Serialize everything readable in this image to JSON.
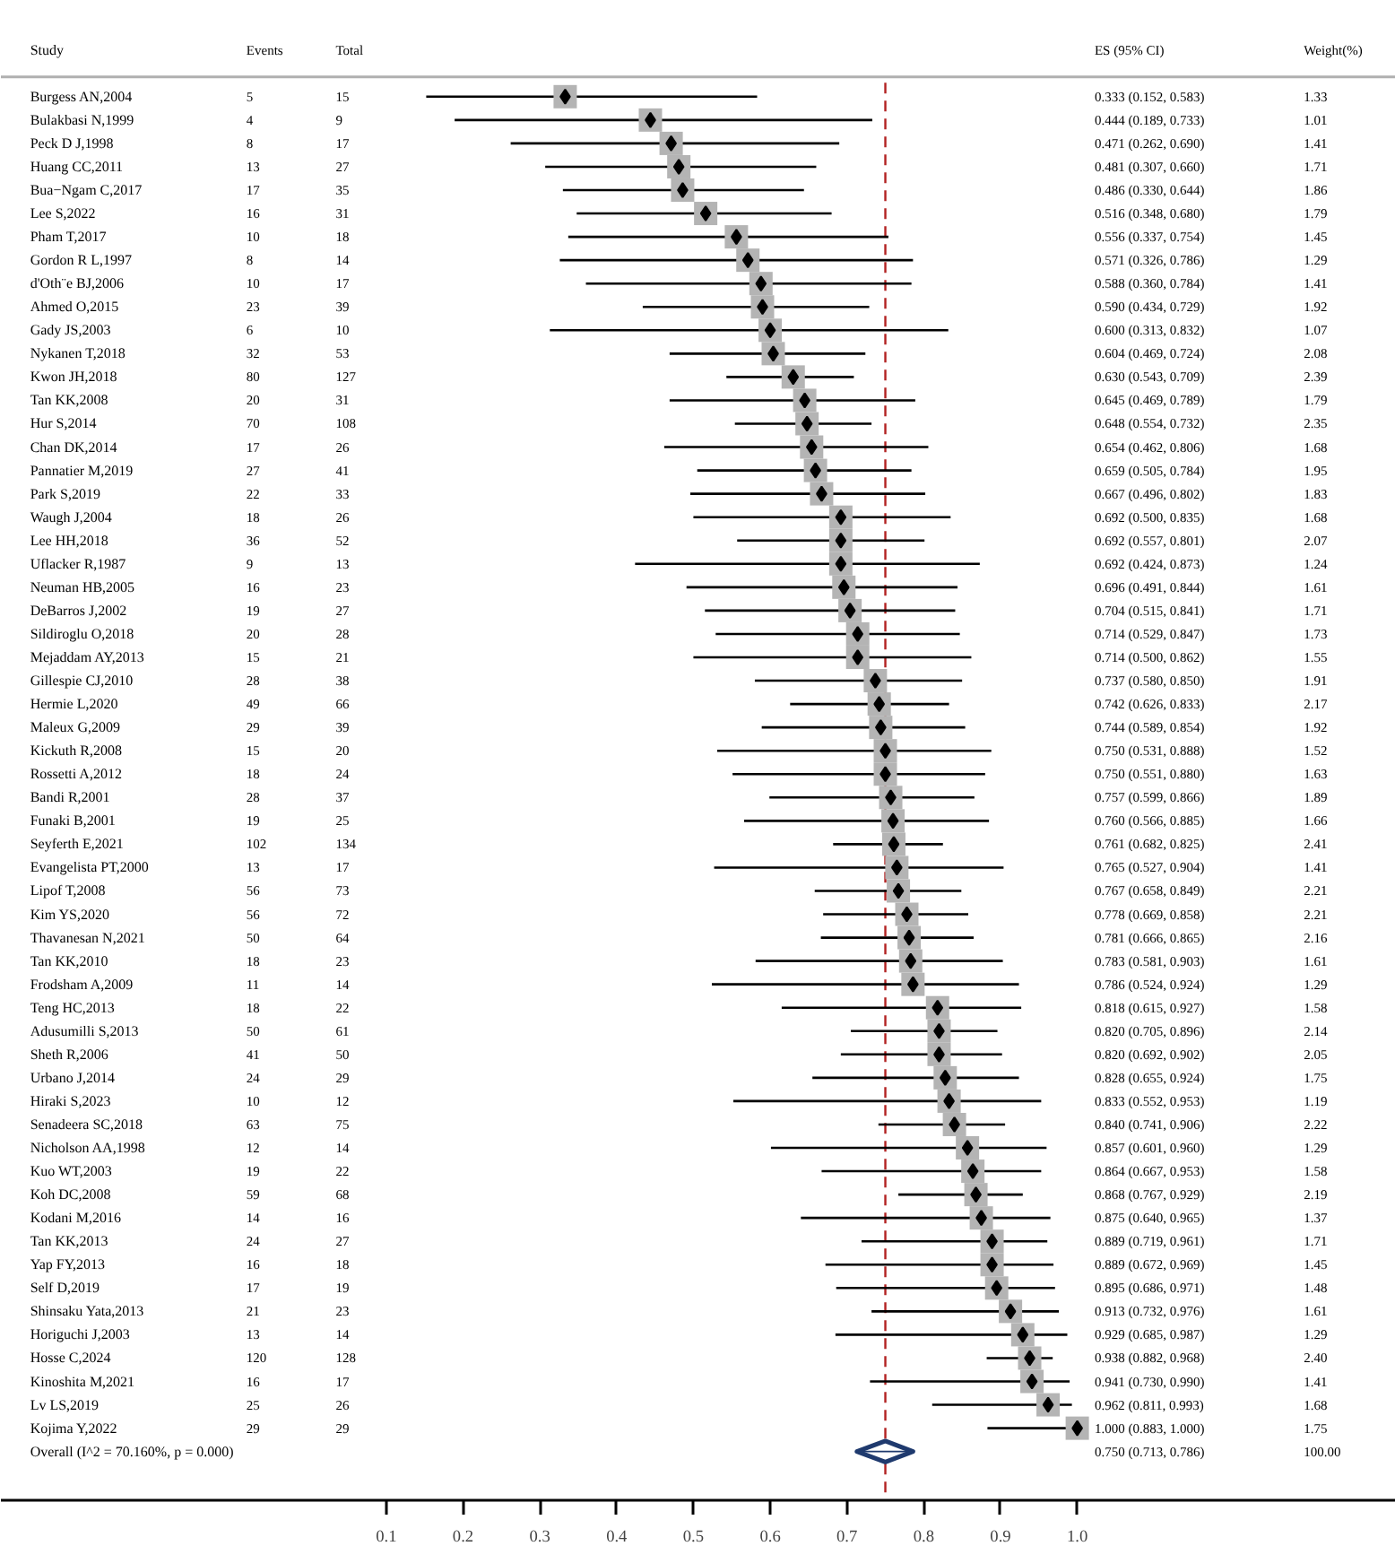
{
  "chart_data": {
    "type": "scatter",
    "orientation": "horizontal",
    "ylabel": "Study",
    "categories": [
      "Burgess AN,2004",
      "Bulakbasi N,1999",
      "Peck D J,1998",
      "Huang CC,2011",
      "Bua−Ngam C,2017",
      "Lee S,2022",
      "Pham T,2017",
      "Gordon R L,1997",
      "d'Oth¨e BJ,2006",
      "Ahmed O,2015",
      "Gady JS,2003",
      "Nykanen T,2018",
      "Kwon JH,2018",
      "Tan KK,2008",
      "Hur S,2014",
      "Chan DK,2014",
      "Pannatier M,2019",
      "Park S,2019",
      "Waugh J,2004",
      "Lee HH,2018",
      "Uflacker R,1987",
      "Neuman HB,2005",
      "DeBarros J,2002",
      "Sildiroglu O,2018",
      "Mejaddam AY,2013",
      "Gillespie CJ,2010",
      "Hermie L,2020",
      "Maleux G,2009",
      "Kickuth R,2008",
      "Rossetti A,2012",
      "Bandi R,2001",
      "Funaki B,2001",
      "Seyferth E,2021",
      "Evangelista PT,2000",
      "Lipof T,2008",
      "Kim YS,2020",
      "Thavanesan N,2021",
      "Tan KK,2010",
      "Frodsham A,2009",
      "Teng HC,2013",
      "Adusumilli S,2013",
      "Sheth R,2006",
      "Urbano J,2014",
      "Hiraki S,2023",
      "Senadeera SC,2018",
      "Nicholson AA,1998",
      "Kuo WT,2003",
      "Koh DC,2008",
      "Kodani M,2016",
      "Tan KK,2013",
      "Yap FY,2013",
      "Self D,2019",
      "Shinsaku Yata,2013",
      "Horiguchi J,2003",
      "Hosse C,2024",
      "Kinoshita M,2021",
      "Lv LS,2019",
      "Kojima Y,2022",
      "Overall  (I^2 = 70.160%, p = 0.000)"
    ],
    "series": [
      {
        "name": "ES (95% CI)",
        "color": "#000000",
        "marker": "diamond",
        "values": [
          0.333,
          0.444,
          0.471,
          0.481,
          0.486,
          0.516,
          0.556,
          0.571,
          0.588,
          0.59,
          0.6,
          0.604,
          0.63,
          0.645,
          0.648,
          0.654,
          0.659,
          0.667,
          0.692,
          0.692,
          0.692,
          0.696,
          0.704,
          0.714,
          0.714,
          0.737,
          0.742,
          0.744,
          0.75,
          0.75,
          0.757,
          0.76,
          0.761,
          0.765,
          0.767,
          0.778,
          0.781,
          0.783,
          0.786,
          0.818,
          0.82,
          0.82,
          0.828,
          0.833,
          0.84,
          0.857,
          0.864,
          0.868,
          0.875,
          0.889,
          0.889,
          0.895,
          0.913,
          0.929,
          0.938,
          0.941,
          0.962,
          1.0,
          null
        ],
        "errors": [
          [
            0.152,
            0.583
          ],
          [
            0.189,
            0.733
          ],
          [
            0.262,
            0.69
          ],
          [
            0.307,
            0.66
          ],
          [
            0.33,
            0.644
          ],
          [
            0.348,
            0.68
          ],
          [
            0.337,
            0.754
          ],
          [
            0.326,
            0.786
          ],
          [
            0.36,
            0.784
          ],
          [
            0.434,
            0.729
          ],
          [
            0.313,
            0.832
          ],
          [
            0.469,
            0.724
          ],
          [
            0.543,
            0.709
          ],
          [
            0.469,
            0.789
          ],
          [
            0.554,
            0.732
          ],
          [
            0.462,
            0.806
          ],
          [
            0.505,
            0.784
          ],
          [
            0.496,
            0.802
          ],
          [
            0.5,
            0.835
          ],
          [
            0.557,
            0.801
          ],
          [
            0.424,
            0.873
          ],
          [
            0.491,
            0.844
          ],
          [
            0.515,
            0.841
          ],
          [
            0.529,
            0.847
          ],
          [
            0.5,
            0.862
          ],
          [
            0.58,
            0.85
          ],
          [
            0.626,
            0.833
          ],
          [
            0.589,
            0.854
          ],
          [
            0.531,
            0.888
          ],
          [
            0.551,
            0.88
          ],
          [
            0.599,
            0.866
          ],
          [
            0.566,
            0.885
          ],
          [
            0.682,
            0.825
          ],
          [
            0.527,
            0.904
          ],
          [
            0.658,
            0.849
          ],
          [
            0.669,
            0.858
          ],
          [
            0.666,
            0.865
          ],
          [
            0.581,
            0.903
          ],
          [
            0.524,
            0.924
          ],
          [
            0.615,
            0.927
          ],
          [
            0.705,
            0.896
          ],
          [
            0.692,
            0.902
          ],
          [
            0.655,
            0.924
          ],
          [
            0.552,
            0.953
          ],
          [
            0.741,
            0.906
          ],
          [
            0.601,
            0.96
          ],
          [
            0.667,
            0.953
          ],
          [
            0.767,
            0.929
          ],
          [
            0.64,
            0.965
          ],
          [
            0.719,
            0.961
          ],
          [
            0.672,
            0.969
          ],
          [
            0.686,
            0.971
          ],
          [
            0.732,
            0.976
          ],
          [
            0.685,
            0.987
          ],
          [
            0.882,
            0.968
          ],
          [
            0.73,
            0.99
          ],
          [
            0.811,
            0.993
          ],
          [
            0.883,
            1.0
          ],
          null
        ]
      },
      {
        "color": "#1f3a6e",
        "marker": "diamond",
        "values": [
          null,
          null,
          null,
          null,
          null,
          null,
          null,
          null,
          null,
          null,
          null,
          null,
          null,
          null,
          null,
          null,
          null,
          null,
          null,
          null,
          null,
          null,
          null,
          null,
          null,
          null,
          null,
          null,
          null,
          null,
          null,
          null,
          null,
          null,
          null,
          null,
          null,
          null,
          null,
          null,
          null,
          null,
          null,
          null,
          null,
          null,
          null,
          null,
          null,
          null,
          null,
          null,
          null,
          null,
          null,
          null,
          null,
          null,
          0.75
        ],
        "errors": [
          null,
          null,
          null,
          null,
          null,
          null,
          null,
          null,
          null,
          null,
          null,
          null,
          null,
          null,
          null,
          null,
          null,
          null,
          null,
          null,
          null,
          null,
          null,
          null,
          null,
          null,
          null,
          null,
          null,
          null,
          null,
          null,
          null,
          null,
          null,
          null,
          null,
          null,
          null,
          null,
          null,
          null,
          null,
          null,
          null,
          null,
          null,
          null,
          null,
          null,
          null,
          null,
          null,
          null,
          null,
          null,
          null,
          null,
          [
            0.713,
            0.786
          ]
        ]
      }
    ],
    "annotations": [
      "Events",
      "Total",
      "Weight(%)",
      "5",
      "15",
      "0.333 (0.152, 0.583)",
      "1.33",
      "4",
      "9",
      "0.444 (0.189, 0.733)",
      "1.01",
      "8",
      "17",
      "0.471 (0.262, 0.690)",
      "1.41",
      "13",
      "27",
      "0.481 (0.307, 0.660)",
      "1.71",
      "17",
      "35",
      "0.486 (0.330, 0.644)",
      "1.86",
      "16",
      "31",
      "0.516 (0.348, 0.680)",
      "1.79",
      "10",
      "18",
      "0.556 (0.337, 0.754)",
      "1.45",
      "8",
      "14",
      "0.571 (0.326, 0.786)",
      "1.29",
      "10",
      "17",
      "0.588 (0.360, 0.784)",
      "1.41",
      "23",
      "39",
      "0.590 (0.434, 0.729)",
      "1.92",
      "6",
      "10",
      "0.600 (0.313, 0.832)",
      "1.07",
      "32",
      "53",
      "0.604 (0.469, 0.724)",
      "2.08",
      "80",
      "127",
      "0.630 (0.543, 0.709)",
      "2.39",
      "20",
      "31",
      "0.645 (0.469, 0.789)",
      "1.79",
      "70",
      "108",
      "0.648 (0.554, 0.732)",
      "2.35",
      "17",
      "26",
      "0.654 (0.462, 0.806)",
      "1.68",
      "27",
      "41",
      "0.659 (0.505, 0.784)",
      "1.95",
      "22",
      "33",
      "0.667 (0.496, 0.802)",
      "1.83",
      "18",
      "26",
      "0.692 (0.500, 0.835)",
      "1.68",
      "36",
      "52",
      "0.692 (0.557, 0.801)",
      "2.07",
      "9",
      "13",
      "0.692 (0.424, 0.873)",
      "1.24",
      "16",
      "23",
      "0.696 (0.491, 0.844)",
      "1.61",
      "19",
      "27",
      "0.704 (0.515, 0.841)",
      "1.71",
      "20",
      "28",
      "0.714 (0.529, 0.847)",
      "1.73",
      "15",
      "21",
      "0.714 (0.500, 0.862)",
      "1.55",
      "28",
      "38",
      "0.737 (0.580, 0.850)",
      "1.91",
      "49",
      "66",
      "0.742 (0.626, 0.833)",
      "2.17",
      "29",
      "39",
      "0.744 (0.589, 0.854)",
      "1.92",
      "15",
      "20",
      "0.750 (0.531, 0.888)",
      "1.52",
      "18",
      "24",
      "0.750 (0.551, 0.880)",
      "1.63",
      "28",
      "37",
      "0.757 (0.599, 0.866)",
      "1.89",
      "19",
      "25",
      "0.760 (0.566, 0.885)",
      "1.66",
      "102",
      "134",
      "0.761 (0.682, 0.825)",
      "2.41",
      "13",
      "17",
      "0.765 (0.527, 0.904)",
      "1.41",
      "56",
      "73",
      "0.767 (0.658, 0.849)",
      "2.21",
      "56",
      "72",
      "0.778 (0.669, 0.858)",
      "2.21",
      "50",
      "64",
      "0.781 (0.666, 0.865)",
      "2.16",
      "18",
      "23",
      "0.783 (0.581, 0.903)",
      "1.61",
      "11",
      "14",
      "0.786 (0.524, 0.924)",
      "1.29",
      "18",
      "22",
      "0.818 (0.615, 0.927)",
      "1.58",
      "50",
      "61",
      "0.820 (0.705, 0.896)",
      "2.14",
      "41",
      "50",
      "0.820 (0.692, 0.902)",
      "2.05",
      "24",
      "29",
      "0.828 (0.655, 0.924)",
      "1.75",
      "10",
      "12",
      "0.833 (0.552, 0.953)",
      "1.19",
      "63",
      "75",
      "0.840 (0.741, 0.906)",
      "2.22",
      "12",
      "14",
      "0.857 (0.601, 0.960)",
      "1.29",
      "19",
      "22",
      "0.864 (0.667, 0.953)",
      "1.58",
      "59",
      "68",
      "0.868 (0.767, 0.929)",
      "2.19",
      "14",
      "16",
      "0.875 (0.640, 0.965)",
      "1.37",
      "24",
      "27",
      "0.889 (0.719, 0.961)",
      "1.71",
      "16",
      "18",
      "0.889 (0.672, 0.969)",
      "1.45",
      "17",
      "19",
      "0.895 (0.686, 0.971)",
      "1.48",
      "21",
      "23",
      "0.913 (0.732, 0.976)",
      "1.61",
      "13",
      "14",
      "0.929 (0.685, 0.987)",
      "1.29",
      "120",
      "128",
      "0.938 (0.882, 0.968)",
      "2.40",
      "16",
      "17",
      "0.941 (0.730, 0.990)",
      "1.41",
      "25",
      "26",
      "0.962 (0.811, 0.993)",
      "1.68",
      "29",
      "29",
      "1.000 (0.883, 1.000)",
      "1.75",
      "0.750 (0.713, 0.786)",
      "100.00"
    ],
    "xlim": [
      -0.402,
      1.415
    ],
    "xticks": [
      0.1,
      0.2,
      0.3,
      0.4,
      0.5,
      0.6,
      0.7,
      0.8,
      0.9,
      {
        "value": 1.0,
        "label": "1.0"
      }
    ],
    "ref_lines": [
      {
        "axis": "x",
        "value": 0.75,
        "color": "#b22222",
        "line_style": "dashed"
      }
    ],
    "grid": false
  }
}
